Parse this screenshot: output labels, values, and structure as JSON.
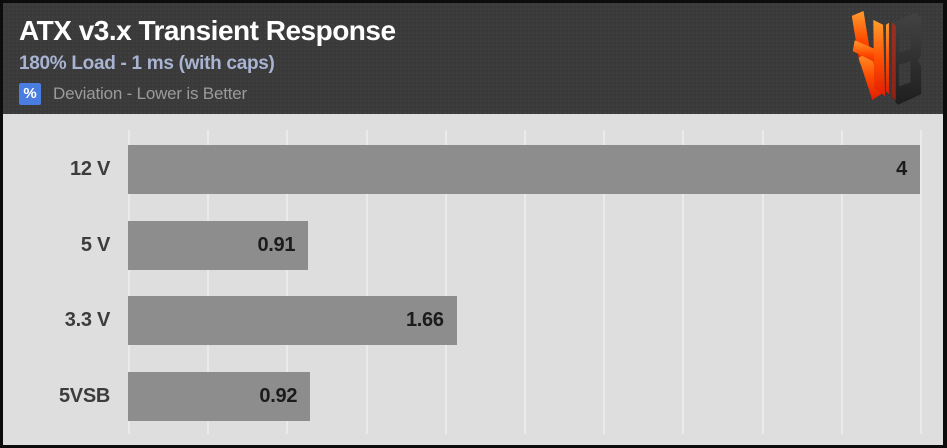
{
  "header": {
    "title": "ATX v3.x Transient Response",
    "subtitle": "180% Load - 1 ms (with caps)",
    "unit_badge": "%",
    "unit_note": "Deviation - Lower is Better"
  },
  "logo": {
    "name": "hardware-busters-hb-logo",
    "orange_top": "#ff9d2e",
    "orange_mid": "#ff4a00",
    "red_bottom": "#e01e04",
    "dark_top": "#434343",
    "dark_bottom": "#1e1e1e"
  },
  "colors": {
    "header_bg": "#3a3a3a",
    "chart_bg": "#dedede",
    "gridline": "#eaeaea",
    "bar": "#8d8d8d",
    "title_text": "#ffffff",
    "subtitle_text": "#a9b4d2",
    "badge_bg": "#4a7de0",
    "note_text": "#9b9b9b",
    "category_text": "#3c3c3c",
    "value_text": "#1b1b1b",
    "border": "#0c0c0c"
  },
  "chart_data": {
    "type": "bar",
    "orientation": "horizontal",
    "title": "ATX v3.x Transient Response",
    "subtitle": "180% Load - 1 ms (with caps)",
    "xlabel": "% Deviation",
    "note": "Lower is Better",
    "categories": [
      "12 V",
      "5 V",
      "3.3 V",
      "5VSB"
    ],
    "values": [
      4,
      0.91,
      1.66,
      0.92
    ],
    "value_labels": [
      "4",
      "0.91",
      "1.66",
      "0.92"
    ],
    "xlim": [
      0,
      4
    ],
    "grid_interval": 0.4,
    "grid": "vertical",
    "legend": "none",
    "bar_color": "#8d8d8d"
  }
}
